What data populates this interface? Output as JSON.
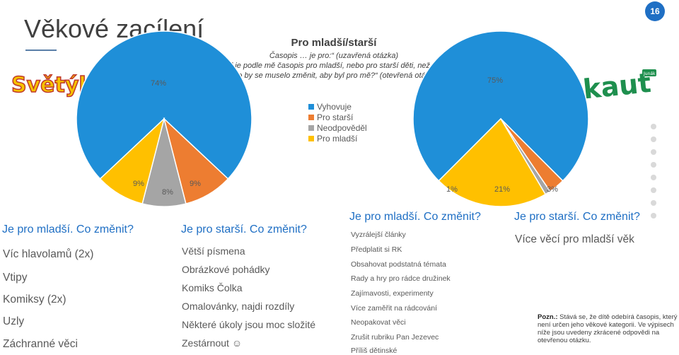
{
  "slide": {
    "title": "Věkové zacílení",
    "number": "16"
  },
  "logos": {
    "left": "Světýlko",
    "right": "skaut",
    "right_small": "Junák"
  },
  "question": {
    "heading": "Pro mladší/starší",
    "lines": [
      "Časopis … je pro:“ (uzavřená otázka)",
      "Pokud je podle mě časopis pro mladší, nebo pro starší děti, než jsem já",
      "– co by se muselo změnit, aby byl pro mě?“ (otevřená otázka)"
    ]
  },
  "legend": [
    {
      "label": "Vyhovuje",
      "color": "#1f8fd8"
    },
    {
      "label": "Pro starší",
      "color": "#ed7d31"
    },
    {
      "label": "Neodpověděl",
      "color": "#a5a5a5"
    },
    {
      "label": "Pro mladší",
      "color": "#ffc000"
    }
  ],
  "chart_data": [
    {
      "type": "pie",
      "name": "Světýlko",
      "slices": [
        {
          "label": "Vyhovuje",
          "value": 74,
          "text": "74%",
          "color": "#1f8fd8"
        },
        {
          "label": "Pro starší",
          "value": 9,
          "text": "9%",
          "color": "#ed7d31"
        },
        {
          "label": "Neodpověděl",
          "value": 8,
          "text": "8%",
          "color": "#a5a5a5"
        },
        {
          "label": "Pro mladší",
          "value": 9,
          "text": "9%",
          "color": "#ffc000"
        }
      ]
    },
    {
      "type": "pie",
      "name": "Skaut",
      "slices": [
        {
          "label": "Vyhovuje",
          "value": 75,
          "text": "75%",
          "color": "#1f8fd8"
        },
        {
          "label": "Pro starší",
          "value": 3,
          "text": "3%",
          "color": "#ed7d31"
        },
        {
          "label": "Neodpověděl",
          "value": 1,
          "text": "1%",
          "color": "#a5a5a5"
        },
        {
          "label": "Pro mladší",
          "value": 21,
          "text": "21%",
          "color": "#ffc000"
        }
      ]
    }
  ],
  "svetylko_younger": {
    "heading": "Je pro mladší. Co změnit?",
    "items": [
      "Víc hlavolamů (2x)",
      "Vtipy",
      "Komiksy (2x)",
      "Uzly",
      "Záchranné věci"
    ]
  },
  "svetylko_older": {
    "heading": "Je pro starší. Co změnit?",
    "items": [
      "Větší písmena",
      "Obrázkové pohádky",
      "Komiks Čolka",
      "Omalovánky, najdi rozdíly",
      "Některé úkoly jsou moc složité",
      "Zestárnout ☺"
    ]
  },
  "skaut_younger": {
    "heading": "Je pro mladší. Co změnit?",
    "items": [
      "Vyzrálejší články",
      "Předplatit si RK",
      "Obsahovat podstatná témata",
      "Rady a hry pro rádce družinek",
      "Zajímavosti, experimenty",
      "Více  zaměřit na rádcování",
      "Neopakovat věci",
      "Zrušit rubriku Pan Jezevec",
      "Příliš dětinské"
    ]
  },
  "skaut_older": {
    "heading": "Je pro starší. Co změnit?",
    "items": [
      "Více věcí pro mladší věk"
    ]
  },
  "note": {
    "label": "Pozn.:",
    "text": " Stává se, že dítě odebírá časopis, který není určen jeho věkové kategorii. Ve výpisech níže jsou uvedeny zkrácené odpovědi na otevřenou otázku."
  }
}
